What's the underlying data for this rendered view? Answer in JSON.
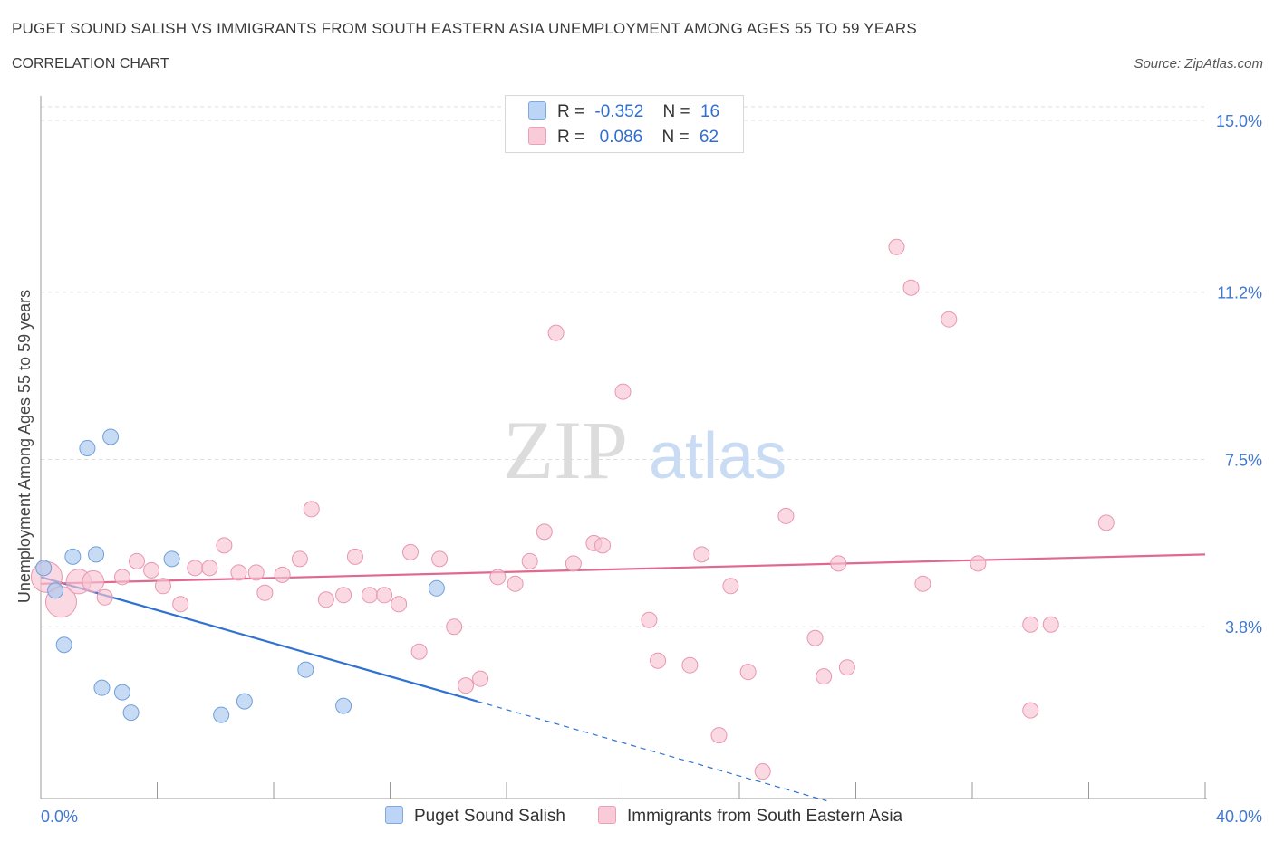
{
  "header": {
    "title": "PUGET SOUND SALISH VS IMMIGRANTS FROM SOUTH EASTERN ASIA UNEMPLOYMENT AMONG AGES 55 TO 59 YEARS",
    "subtitle": "CORRELATION CHART",
    "source": "Source: ZipAtlas.com"
  },
  "legend": {
    "row1": {
      "r_label": "R =",
      "r_value": "-0.352",
      "n_label": "N =",
      "n_value": "16"
    },
    "row2": {
      "r_label": "R =",
      "r_value": " 0.086",
      "n_label": "N =",
      "n_value": "62"
    }
  },
  "watermark": {
    "zip": "ZIP",
    "atlas": "atlas"
  },
  "chart_data": {
    "type": "scatter",
    "ylabel": "Unemployment Among Ages 55 to 59 years",
    "xlabel": "",
    "xlim": [
      0,
      40
    ],
    "ylim": [
      0,
      15.3
    ],
    "x_tick_labels": [
      "0.0%",
      "40.0%"
    ],
    "y_ticks": [
      3.8,
      7.5,
      11.2,
      15.0
    ],
    "y_tick_labels": [
      "3.8%",
      "7.5%",
      "11.2%",
      "15.0%"
    ],
    "grid": true,
    "series": [
      {
        "name": "Puget Sound Salish",
        "color": "#a9c8f0",
        "stroke": "#6fa0dc",
        "line_color": "#2f72d2",
        "trend": {
          "x0": 0,
          "y0": 4.9,
          "x1": 15.0,
          "y1": 2.15,
          "dashed_to_x": 27.0
        },
        "points": [
          {
            "x": 0.1,
            "y": 5.1,
            "s": 1
          },
          {
            "x": 0.5,
            "y": 4.6,
            "s": 1
          },
          {
            "x": 0.8,
            "y": 3.4,
            "s": 1
          },
          {
            "x": 1.1,
            "y": 5.35,
            "s": 1
          },
          {
            "x": 1.6,
            "y": 7.75,
            "s": 1
          },
          {
            "x": 1.9,
            "y": 5.4,
            "s": 1
          },
          {
            "x": 2.1,
            "y": 2.45,
            "s": 1
          },
          {
            "x": 2.8,
            "y": 2.35,
            "s": 1
          },
          {
            "x": 3.1,
            "y": 1.9,
            "s": 1
          },
          {
            "x": 2.4,
            "y": 8.0,
            "s": 1
          },
          {
            "x": 4.5,
            "y": 5.3,
            "s": 1
          },
          {
            "x": 6.2,
            "y": 1.85,
            "s": 1
          },
          {
            "x": 7.0,
            "y": 2.15,
            "s": 1
          },
          {
            "x": 9.1,
            "y": 2.85,
            "s": 1
          },
          {
            "x": 10.4,
            "y": 2.05,
            "s": 1
          },
          {
            "x": 13.6,
            "y": 4.65,
            "s": 1
          }
        ]
      },
      {
        "name": "Immigrants from South Eastern Asia",
        "color": "#f7c5d3",
        "stroke": "#e996b0",
        "line_color": "#e0698f",
        "trend": {
          "x0": 0,
          "y0": 4.75,
          "x1": 40.0,
          "y1": 5.4
        },
        "points": [
          {
            "x": 0.2,
            "y": 4.9,
            "s": 2
          },
          {
            "x": 0.7,
            "y": 4.35,
            "s": 2
          },
          {
            "x": 1.3,
            "y": 4.8,
            "s": 1.6
          },
          {
            "x": 1.8,
            "y": 4.8,
            "s": 1.4
          },
          {
            "x": 2.2,
            "y": 4.45,
            "s": 1
          },
          {
            "x": 2.8,
            "y": 4.9,
            "s": 1
          },
          {
            "x": 3.3,
            "y": 5.25,
            "s": 1
          },
          {
            "x": 3.8,
            "y": 5.05,
            "s": 1
          },
          {
            "x": 4.2,
            "y": 4.7,
            "s": 1
          },
          {
            "x": 4.8,
            "y": 4.3,
            "s": 1
          },
          {
            "x": 5.3,
            "y": 5.1,
            "s": 1
          },
          {
            "x": 5.8,
            "y": 5.1,
            "s": 1
          },
          {
            "x": 6.3,
            "y": 5.6,
            "s": 1
          },
          {
            "x": 6.8,
            "y": 5.0,
            "s": 1
          },
          {
            "x": 7.4,
            "y": 5.0,
            "s": 1
          },
          {
            "x": 7.7,
            "y": 4.55,
            "s": 1
          },
          {
            "x": 8.3,
            "y": 4.95,
            "s": 1
          },
          {
            "x": 8.9,
            "y": 5.3,
            "s": 1
          },
          {
            "x": 9.3,
            "y": 6.4,
            "s": 1
          },
          {
            "x": 9.8,
            "y": 4.4,
            "s": 1
          },
          {
            "x": 10.4,
            "y": 4.5,
            "s": 1
          },
          {
            "x": 10.8,
            "y": 5.35,
            "s": 1
          },
          {
            "x": 11.3,
            "y": 4.5,
            "s": 1
          },
          {
            "x": 11.8,
            "y": 4.5,
            "s": 1
          },
          {
            "x": 12.3,
            "y": 4.3,
            "s": 1
          },
          {
            "x": 12.7,
            "y": 5.45,
            "s": 1
          },
          {
            "x": 13.0,
            "y": 3.25,
            "s": 1
          },
          {
            "x": 13.7,
            "y": 5.3,
            "s": 1
          },
          {
            "x": 14.2,
            "y": 3.8,
            "s": 1
          },
          {
            "x": 14.6,
            "y": 2.5,
            "s": 1
          },
          {
            "x": 15.1,
            "y": 2.65,
            "s": 1
          },
          {
            "x": 15.7,
            "y": 4.9,
            "s": 1
          },
          {
            "x": 16.3,
            "y": 4.75,
            "s": 1
          },
          {
            "x": 16.8,
            "y": 5.25,
            "s": 1
          },
          {
            "x": 17.3,
            "y": 5.9,
            "s": 1
          },
          {
            "x": 17.7,
            "y": 10.3,
            "s": 1
          },
          {
            "x": 18.3,
            "y": 5.2,
            "s": 1
          },
          {
            "x": 19.0,
            "y": 5.65,
            "s": 1
          },
          {
            "x": 19.3,
            "y": 5.6,
            "s": 1
          },
          {
            "x": 20.0,
            "y": 9.0,
            "s": 1
          },
          {
            "x": 20.9,
            "y": 3.95,
            "s": 1
          },
          {
            "x": 21.2,
            "y": 3.05,
            "s": 1
          },
          {
            "x": 22.3,
            "y": 2.95,
            "s": 1
          },
          {
            "x": 22.7,
            "y": 5.4,
            "s": 1
          },
          {
            "x": 23.3,
            "y": 1.4,
            "s": 1
          },
          {
            "x": 23.7,
            "y": 4.7,
            "s": 1
          },
          {
            "x": 24.3,
            "y": 2.8,
            "s": 1
          },
          {
            "x": 24.8,
            "y": 0.6,
            "s": 1
          },
          {
            "x": 25.6,
            "y": 6.25,
            "s": 1
          },
          {
            "x": 26.6,
            "y": 3.55,
            "s": 1
          },
          {
            "x": 26.9,
            "y": 2.7,
            "s": 1
          },
          {
            "x": 27.4,
            "y": 5.2,
            "s": 1
          },
          {
            "x": 27.7,
            "y": 2.9,
            "s": 1
          },
          {
            "x": 29.4,
            "y": 12.2,
            "s": 1
          },
          {
            "x": 29.9,
            "y": 11.3,
            "s": 1
          },
          {
            "x": 30.3,
            "y": 4.75,
            "s": 1
          },
          {
            "x": 31.2,
            "y": 10.6,
            "s": 1
          },
          {
            "x": 32.2,
            "y": 5.2,
            "s": 1
          },
          {
            "x": 34.0,
            "y": 3.85,
            "s": 1
          },
          {
            "x": 34.0,
            "y": 1.95,
            "s": 1
          },
          {
            "x": 34.7,
            "y": 3.85,
            "s": 1
          },
          {
            "x": 36.6,
            "y": 6.1,
            "s": 1
          }
        ]
      }
    ]
  }
}
